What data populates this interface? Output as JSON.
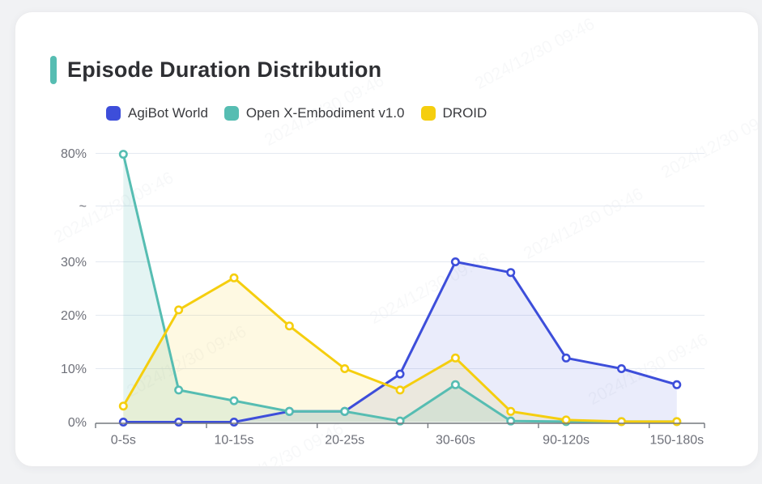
{
  "header": {
    "title": "Episode Duration Distribution",
    "accent_color": "#56BDB2"
  },
  "watermark": {
    "text": "2024/12/30 09:46"
  },
  "chart_data": {
    "type": "line",
    "title": "Episode Duration Distribution",
    "x_tick_labels": [
      "0-5s",
      "10-15s",
      "20-25s",
      "30-60s",
      "90-120s",
      "150-180s"
    ],
    "x_tick_label_indices": [
      0,
      2,
      4,
      6,
      8,
      10
    ],
    "num_points": 11,
    "xlabel": "",
    "ylabel": "",
    "y_axis": {
      "unit": "%",
      "broken_axis": true,
      "tick_labels_top_to_bottom": [
        "80%",
        "~",
        "30%",
        "20%",
        "10%",
        "0%"
      ],
      "linear_range_bottom": [
        0,
        30
      ],
      "top_value_after_break": 80
    },
    "grid": true,
    "area_fill": true,
    "marker": "hollow-circle",
    "legend_position": "top-left",
    "series": [
      {
        "name": "AgiBot World",
        "color": "#3D4EDA",
        "values": [
          0,
          0,
          0,
          2,
          2,
          9,
          30,
          28,
          12,
          10,
          7
        ]
      },
      {
        "name": "Open X-Embodiment v1.0",
        "color": "#56BDB2",
        "values": [
          79.6,
          6,
          4,
          2,
          2,
          0.2,
          7,
          0.2,
          0.1,
          0.1,
          0.1
        ]
      },
      {
        "name": "DROID",
        "color": "#F5CE0E",
        "values": [
          3,
          21,
          27,
          18,
          10,
          6,
          12,
          2,
          0.4,
          0.1,
          0.1
        ]
      }
    ]
  }
}
